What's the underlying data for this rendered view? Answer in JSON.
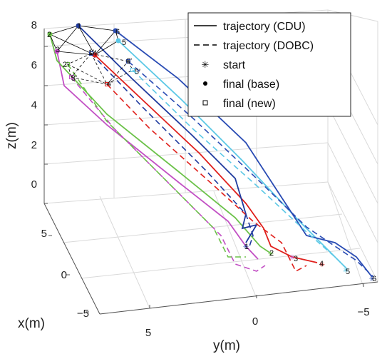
{
  "chart_data": {
    "type": "line",
    "projection": "3d",
    "xlabel": "x(m)",
    "ylabel": "y(m)",
    "zlabel": "z(m)",
    "z_ticks": [
      "0",
      "2",
      "4",
      "6",
      "8"
    ],
    "x_ticks": [
      "5",
      "0",
      "−5"
    ],
    "y_ticks": [
      "5",
      "0",
      "−5"
    ],
    "legend": {
      "placement": "top-right",
      "entries": [
        {
          "label": "trajectory (CDU)",
          "marker": "solid-line"
        },
        {
          "label": "trajectory (DOBC)",
          "marker": "dashed-line"
        },
        {
          "label": "start",
          "marker": "asterisk"
        },
        {
          "label": "final (base)",
          "marker": "dot"
        },
        {
          "label": "final (new)",
          "marker": "square"
        }
      ]
    },
    "agent_labels": {
      "start": [
        "1",
        "2",
        "3",
        "4",
        "5",
        "6"
      ],
      "final_base": [
        "1",
        "2",
        "3",
        "4",
        "5",
        "6"
      ],
      "final_new": [
        "1'",
        "2'",
        "3'",
        "4'",
        "5'",
        "6'"
      ]
    },
    "series_colors": {
      "1": "#1f3a9e",
      "2": "#6cc24a",
      "3": "#c24fc4",
      "4": "#e0201c",
      "5": "#5bc8e6",
      "6": "#2a4cb4"
    },
    "grid": true
  }
}
